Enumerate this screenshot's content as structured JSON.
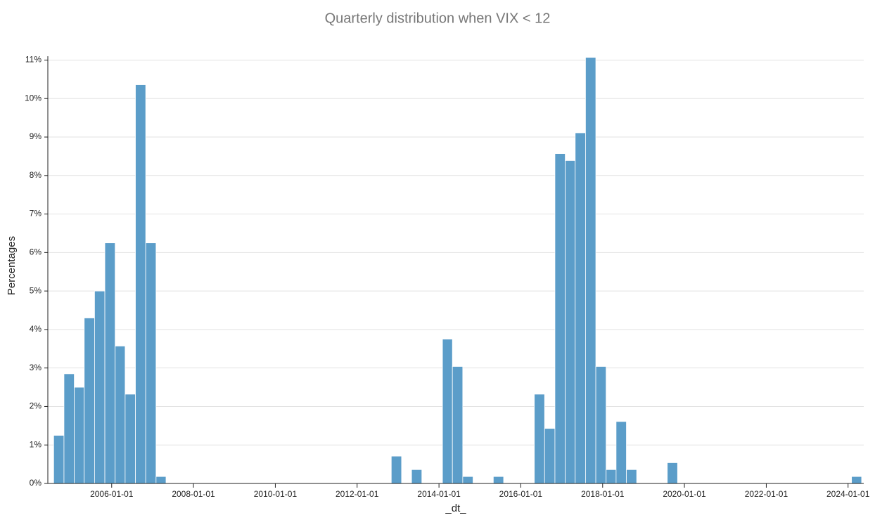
{
  "chart_data": {
    "type": "histogram",
    "title": "Quarterly distribution when VIX < 12",
    "x_label": "_dt_",
    "y_label": "Percentages",
    "color": "#5b9dc9",
    "grid": true,
    "bins": [
      "2004-08-01",
      "2004-11-01",
      "2005-02-01",
      "2005-05-01",
      "2005-08-01",
      "2005-11-01",
      "2006-02-01",
      "2006-05-01",
      "2006-08-01",
      "2006-11-01",
      "2007-02-01",
      "2007-05-01",
      "2007-08-01",
      "2007-11-01",
      "2008-02-01",
      "2008-05-01",
      "2008-08-01",
      "2008-11-01",
      "2009-02-01",
      "2009-05-01",
      "2009-08-01",
      "2009-11-01",
      "2010-02-01",
      "2010-05-01",
      "2010-08-01",
      "2010-11-01",
      "2011-02-01",
      "2011-05-01",
      "2011-08-01",
      "2011-11-01",
      "2012-02-01",
      "2012-05-01",
      "2012-08-01",
      "2012-11-01",
      "2013-02-01",
      "2013-05-01",
      "2013-08-01",
      "2013-11-01",
      "2014-02-01",
      "2014-05-01",
      "2014-08-01",
      "2014-11-01",
      "2015-02-01",
      "2015-05-01",
      "2015-08-01",
      "2015-11-01",
      "2016-02-01",
      "2016-05-01",
      "2016-08-01",
      "2016-11-01",
      "2017-02-01",
      "2017-05-01",
      "2017-08-01",
      "2017-11-01",
      "2018-02-01",
      "2018-05-01",
      "2018-08-01",
      "2018-11-01",
      "2019-02-01",
      "2019-05-01",
      "2019-08-01",
      "2019-11-01",
      "2020-02-01",
      "2020-05-01",
      "2020-08-01",
      "2020-11-01",
      "2021-02-01",
      "2021-05-01",
      "2021-08-01",
      "2021-11-01",
      "2022-02-01",
      "2022-05-01",
      "2022-08-01",
      "2022-11-01",
      "2023-02-01",
      "2023-05-01",
      "2023-08-01",
      "2023-11-01",
      "2024-02-01",
      "2024-05-01"
    ],
    "values": [
      1.25,
      2.85,
      2.5,
      4.3,
      5.0,
      6.25,
      3.57,
      2.32,
      10.36,
      6.25,
      0.18,
      0,
      0,
      0,
      0,
      0,
      0,
      0,
      0,
      0,
      0,
      0,
      0,
      0,
      0,
      0,
      0,
      0,
      0,
      0,
      0,
      0,
      0,
      0.71,
      0,
      0.36,
      0,
      0,
      3.75,
      3.04,
      0.18,
      0,
      0,
      0.18,
      0,
      0,
      0,
      2.32,
      1.43,
      8.57,
      8.39,
      9.11,
      11.07,
      3.04,
      0.36,
      1.61,
      0.36,
      0,
      0,
      0,
      0.54,
      0,
      0,
      0,
      0,
      0,
      0,
      0,
      0,
      0,
      0,
      0,
      0,
      0,
      0,
      0,
      0,
      0,
      0.18
    ],
    "xlim": [
      "2004-06-10",
      "2024-05-20"
    ],
    "xticks": [
      "2006-01-01",
      "2008-01-01",
      "2010-01-01",
      "2012-01-01",
      "2014-01-01",
      "2016-01-01",
      "2018-01-01",
      "2020-01-01",
      "2022-01-01",
      "2024-01-01"
    ],
    "ylim": [
      0,
      11.1
    ],
    "yticks": [
      {
        "value": 0,
        "label": "0%"
      },
      {
        "value": 1,
        "label": "1%"
      },
      {
        "value": 2,
        "label": "2%"
      },
      {
        "value": 3,
        "label": "3%"
      },
      {
        "value": 4,
        "label": "4%"
      },
      {
        "value": 5,
        "label": "5%"
      },
      {
        "value": 6,
        "label": "6%"
      },
      {
        "value": 7,
        "label": "7%"
      },
      {
        "value": 8,
        "label": "8%"
      },
      {
        "value": 9,
        "label": "9%"
      },
      {
        "value": 10,
        "label": "10%"
      },
      {
        "value": 11,
        "label": "11%"
      }
    ]
  }
}
